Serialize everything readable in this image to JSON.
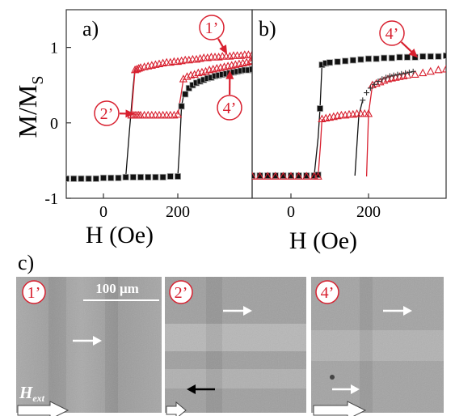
{
  "chart_data": [
    {
      "panel": "a)",
      "type": "scatter",
      "ylabel_main": "M/M",
      "ylabel_sub": "S",
      "xlabel": "H (Oe)",
      "xlim": [
        -100,
        400
      ],
      "ylim": [
        -1,
        1.5
      ],
      "xticks": [
        {
          "v": 0,
          "label": "0"
        },
        {
          "v": 200,
          "label": "200"
        }
      ],
      "yticks": [
        {
          "v": -1,
          "label": "-1"
        },
        {
          "v": 0,
          "label": "0"
        },
        {
          "v": 1,
          "label": "1"
        }
      ],
      "series": [
        {
          "marker": "square",
          "color": "#111111",
          "x": [
            -100,
            -80,
            -60,
            -40,
            -20,
            0,
            20,
            40,
            60,
            80,
            100,
            120,
            140,
            160,
            180,
            200,
            210,
            220,
            230,
            240,
            250,
            260,
            270,
            280,
            290,
            300,
            310,
            320,
            330,
            340,
            350,
            360,
            370,
            380,
            390,
            400
          ],
          "y": [
            -0.74,
            -0.74,
            -0.74,
            -0.74,
            -0.74,
            -0.73,
            -0.73,
            -0.73,
            -0.72,
            -0.72,
            -0.72,
            -0.72,
            -0.72,
            -0.72,
            -0.71,
            -0.71,
            0.22,
            0.38,
            0.46,
            0.5,
            0.53,
            0.55,
            0.57,
            0.59,
            0.6,
            0.62,
            0.63,
            0.64,
            0.65,
            0.66,
            0.67,
            0.68,
            0.69,
            0.7,
            0.7,
            0.71
          ]
        },
        {
          "marker": "triangle",
          "color": "#d8202f",
          "x": [
            75,
            80,
            85,
            90,
            95,
            100,
            110,
            120,
            130,
            140,
            150,
            160,
            170,
            180,
            190,
            200,
            215,
            225,
            235,
            245,
            255,
            265,
            275,
            285,
            295,
            305,
            315,
            325,
            335,
            345,
            355,
            365,
            375,
            385,
            395,
            400
          ],
          "y": [
            0.1,
            0.1,
            0.1,
            0.1,
            0.1,
            0.1,
            0.1,
            0.1,
            0.1,
            0.1,
            0.1,
            0.1,
            0.1,
            0.1,
            0.1,
            0.11,
            0.58,
            0.61,
            0.63,
            0.64,
            0.66,
            0.67,
            0.68,
            0.7,
            0.71,
            0.72,
            0.73,
            0.74,
            0.75,
            0.76,
            0.77,
            0.78,
            0.79,
            0.8,
            0.81,
            0.82
          ]
        },
        {
          "marker": "triangle",
          "color": "#d8202f",
          "x": [
            85,
            90,
            95,
            100,
            110,
            120,
            130,
            140,
            150,
            160,
            170,
            180,
            190,
            200,
            210,
            220,
            230,
            240,
            250,
            260,
            270,
            280,
            290,
            300,
            310,
            320,
            330,
            340,
            350,
            360,
            370,
            380,
            390,
            400
          ],
          "y": [
            0.7,
            0.71,
            0.72,
            0.73,
            0.74,
            0.75,
            0.76,
            0.77,
            0.78,
            0.79,
            0.8,
            0.8,
            0.81,
            0.81,
            0.82,
            0.83,
            0.83,
            0.84,
            0.84,
            0.85,
            0.86,
            0.86,
            0.87,
            0.87,
            0.87,
            0.88,
            0.88,
            0.88,
            0.89,
            0.89,
            0.89,
            0.9,
            0.9,
            0.9
          ]
        }
      ],
      "lines": [
        {
          "color": "#111111",
          "points": [
            [
              60,
              -0.72
            ],
            [
              70,
              -0.1
            ],
            [
              80,
              0.48
            ],
            [
              85,
              0.72
            ]
          ]
        },
        {
          "color": "#111111",
          "points": [
            [
              200,
              -0.71
            ],
            [
              205,
              -0.3
            ],
            [
              210,
              0.22
            ],
            [
              215,
              0.35
            ]
          ]
        },
        {
          "color": "#d8202f",
          "points": [
            [
              75,
              0.1
            ],
            [
              80,
              0.4
            ],
            [
              85,
              0.7
            ]
          ]
        },
        {
          "color": "#d8202f",
          "points": [
            [
              200,
              0.11
            ],
            [
              208,
              0.35
            ],
            [
              215,
              0.58
            ]
          ]
        }
      ],
      "callouts": [
        {
          "label": "1’",
          "color": "#d8202f",
          "target": [
            335,
            0.89
          ]
        },
        {
          "label": "2’",
          "color": "#d8202f",
          "target": [
            88,
            0.12
          ]
        },
        {
          "label": "4’",
          "color": "#d8202f",
          "target": [
            340,
            0.72
          ]
        }
      ]
    },
    {
      "panel": "b)",
      "type": "scatter",
      "xlabel": "H (Oe)",
      "xlim": [
        -100,
        400
      ],
      "ylim": [
        -1,
        1.5
      ],
      "xticks": [
        {
          "v": 0,
          "label": "0"
        },
        {
          "v": 200,
          "label": "200"
        }
      ],
      "series": [
        {
          "marker": "square",
          "color": "#111111",
          "x": [
            -100,
            -80,
            -60,
            -40,
            -20,
            0,
            20,
            40,
            60,
            70,
            75,
            80,
            90,
            100,
            120,
            140,
            160,
            180,
            200,
            220,
            240,
            260,
            280,
            300,
            320,
            340,
            360,
            380,
            400
          ],
          "y": [
            -0.7,
            -0.7,
            -0.7,
            -0.7,
            -0.7,
            -0.7,
            -0.7,
            -0.7,
            -0.7,
            -0.69,
            0.19,
            0.77,
            0.79,
            0.8,
            0.81,
            0.82,
            0.83,
            0.84,
            0.85,
            0.85,
            0.86,
            0.86,
            0.87,
            0.87,
            0.87,
            0.88,
            0.88,
            0.88,
            0.89
          ]
        },
        {
          "marker": "triangle",
          "color": "#d8202f",
          "x": [
            -100,
            -80,
            -60,
            -40,
            -20,
            0,
            20,
            40,
            60,
            70,
            80,
            90,
            100,
            110,
            120,
            130,
            140,
            150,
            160,
            170,
            180,
            190,
            200,
            210,
            220,
            230,
            240,
            250,
            260,
            270,
            280,
            290,
            300,
            320,
            340,
            360,
            380,
            400
          ],
          "y": [
            -0.71,
            -0.71,
            -0.71,
            -0.71,
            -0.71,
            -0.71,
            -0.71,
            -0.71,
            -0.71,
            -0.71,
            0.05,
            0.06,
            0.07,
            0.08,
            0.09,
            0.1,
            0.1,
            0.11,
            0.11,
            0.12,
            0.12,
            0.12,
            0.12,
            0.5,
            0.52,
            0.54,
            0.56,
            0.58,
            0.59,
            0.6,
            0.61,
            0.62,
            0.63,
            0.64,
            0.66,
            0.68,
            0.7,
            0.71
          ]
        },
        {
          "marker": "plus",
          "color": "#333333",
          "x": [
            185,
            195,
            205,
            215,
            225,
            235,
            245,
            255,
            265,
            275,
            285,
            295,
            305,
            315
          ],
          "y": [
            0.3,
            0.4,
            0.46,
            0.51,
            0.55,
            0.58,
            0.6,
            0.62,
            0.63,
            0.64,
            0.65,
            0.66,
            0.67,
            0.68
          ]
        }
      ],
      "lines": [
        {
          "color": "#111111",
          "points": [
            [
              60,
              -0.7
            ],
            [
              70,
              -0.2
            ],
            [
              75,
              0.19
            ],
            [
              80,
              0.77
            ]
          ]
        },
        {
          "color": "#d8202f",
          "points": [
            [
              70,
              -0.71
            ],
            [
              76,
              -0.3
            ],
            [
              80,
              0.05
            ]
          ]
        },
        {
          "color": "#d8202f",
          "points": [
            [
              195,
              -0.71
            ],
            [
              200,
              0.12
            ],
            [
              210,
              0.5
            ]
          ]
        },
        {
          "color": "#111111",
          "points": [
            [
              165,
              -0.7
            ],
            [
              175,
              0.1
            ],
            [
              185,
              0.3
            ]
          ]
        }
      ],
      "callouts": [
        {
          "label": "4’",
          "color": "#d8202f",
          "target": [
            330,
            0.85
          ]
        }
      ]
    }
  ],
  "panel_c": {
    "label": "c)",
    "images": [
      {
        "badge": "1’",
        "scale_bar_label": "100 μm",
        "field_label": "H",
        "field_label_sub": "ext",
        "arrows": [
          {
            "dir": "right",
            "color": "white"
          }
        ]
      },
      {
        "badge": "2’",
        "arrows": [
          {
            "dir": "right",
            "color": "white"
          },
          {
            "dir": "left",
            "color": "black"
          }
        ]
      },
      {
        "badge": "4’",
        "arrows": [
          {
            "dir": "right",
            "color": "white"
          },
          {
            "dir": "right",
            "color": "white"
          }
        ]
      }
    ]
  }
}
